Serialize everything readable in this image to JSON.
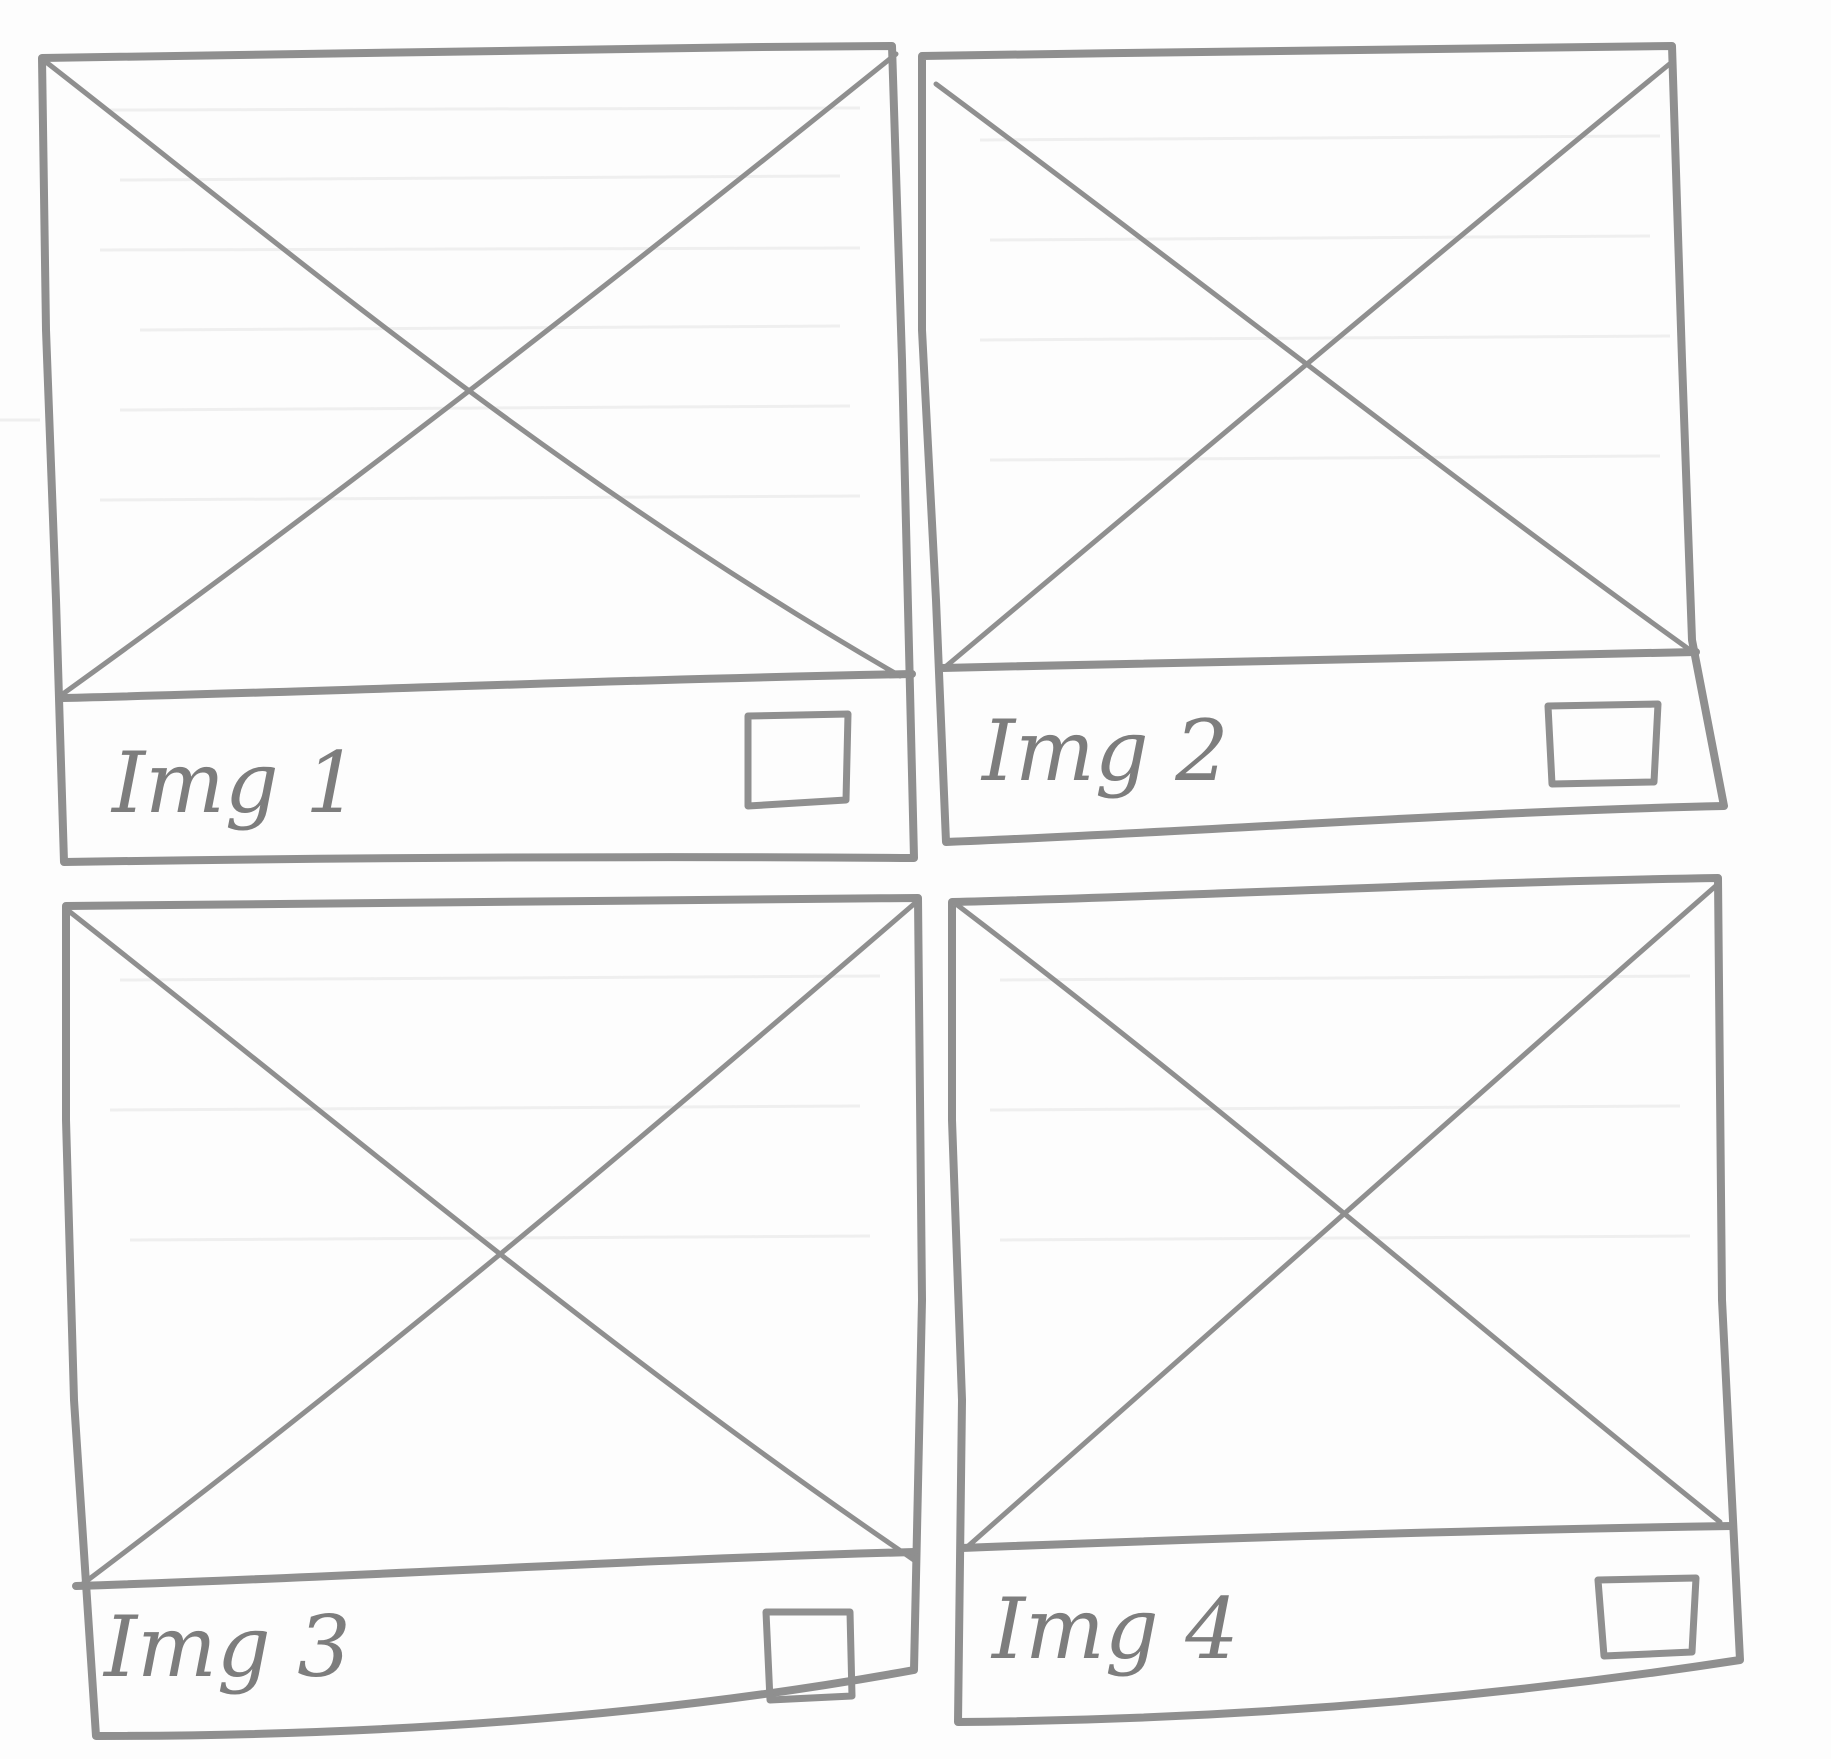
{
  "grid": {
    "cards": [
      {
        "label": "Img 1",
        "checked": false
      },
      {
        "label": "Img 2",
        "checked": false
      },
      {
        "label": "Img 3",
        "checked": false
      },
      {
        "label": "Img 4",
        "checked": false
      }
    ]
  },
  "colors": {
    "pencil": "#8f8f8f",
    "paper": "#fdfdfd"
  },
  "icons": {
    "placeholder": "image-placeholder-icon",
    "select": "checkbox-icon"
  }
}
